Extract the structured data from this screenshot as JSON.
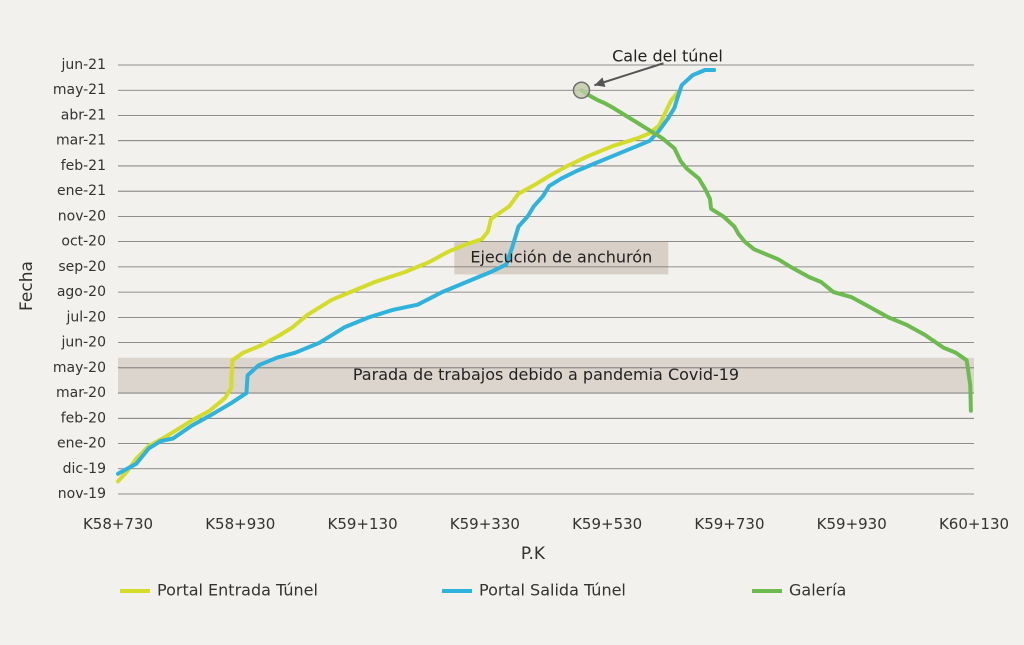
{
  "chart_data": {
    "type": "line",
    "xlabel": "P.K",
    "ylabel": "Fecha",
    "x_unit": "m (P.K. chainage)",
    "xlim": [
      58730,
      60130
    ],
    "x_ticks": [
      {
        "value": 58730,
        "label": "K58+730"
      },
      {
        "value": 58930,
        "label": "K58+930"
      },
      {
        "value": 59130,
        "label": "K59+130"
      },
      {
        "value": 59330,
        "label": "K59+330"
      },
      {
        "value": 59530,
        "label": "K59+530"
      },
      {
        "value": 59730,
        "label": "K59+730"
      },
      {
        "value": 59930,
        "label": "K59+930"
      },
      {
        "value": 60130,
        "label": "K60+130"
      }
    ],
    "y_ticks": [
      "nov-19",
      "dic-19",
      "ene-20",
      "feb-20",
      "mar-20",
      "may-20",
      "jun-20",
      "jul-20",
      "ago-20",
      "sep-20",
      "oct-20",
      "nov-20",
      "ene-21",
      "feb-21",
      "mar-21",
      "abr-21",
      "may-21",
      "jun-21"
    ],
    "grid": true,
    "legend_position": "bottom",
    "series": [
      {
        "name": "Portal Entrada Túnel",
        "color": "#d4dc2a",
        "points": [
          [
            58730,
            0.5
          ],
          [
            58745,
            0.9
          ],
          [
            58760,
            1.4
          ],
          [
            58780,
            1.9
          ],
          [
            58810,
            2.3
          ],
          [
            58850,
            2.9
          ],
          [
            58880,
            3.3
          ],
          [
            58905,
            3.8
          ],
          [
            58915,
            4.2
          ],
          [
            58917,
            5.3
          ],
          [
            58935,
            5.6
          ],
          [
            58965,
            5.9
          ],
          [
            58995,
            6.3
          ],
          [
            59015,
            6.6
          ],
          [
            59040,
            7.1
          ],
          [
            59080,
            7.7
          ],
          [
            59110,
            8.0
          ],
          [
            59150,
            8.4
          ],
          [
            59200,
            8.8
          ],
          [
            59240,
            9.2
          ],
          [
            59270,
            9.6
          ],
          [
            59300,
            9.9
          ],
          [
            59325,
            10.1
          ],
          [
            59335,
            10.4
          ],
          [
            59340,
            10.9
          ],
          [
            59370,
            11.4
          ],
          [
            59385,
            11.9
          ],
          [
            59415,
            12.3
          ],
          [
            59435,
            12.6
          ],
          [
            59465,
            13.0
          ],
          [
            59500,
            13.4
          ],
          [
            59540,
            13.8
          ],
          [
            59580,
            14.1
          ],
          [
            59600,
            14.3
          ],
          [
            59615,
            14.6
          ],
          [
            59625,
            15.1
          ],
          [
            59635,
            15.6
          ],
          [
            59645,
            15.9
          ]
        ]
      },
      {
        "name": "Portal Salida Túnel",
        "color": "#2fb2dc",
        "points": [
          [
            58730,
            0.8
          ],
          [
            58760,
            1.2
          ],
          [
            58780,
            1.8
          ],
          [
            58800,
            2.1
          ],
          [
            58820,
            2.2
          ],
          [
            58850,
            2.7
          ],
          [
            58880,
            3.1
          ],
          [
            58915,
            3.6
          ],
          [
            58940,
            4.0
          ],
          [
            58942,
            4.7
          ],
          [
            58960,
            5.1
          ],
          [
            58990,
            5.4
          ],
          [
            59020,
            5.6
          ],
          [
            59060,
            6.0
          ],
          [
            59100,
            6.6
          ],
          [
            59140,
            7.0
          ],
          [
            59180,
            7.3
          ],
          [
            59220,
            7.5
          ],
          [
            59260,
            8.0
          ],
          [
            59300,
            8.4
          ],
          [
            59340,
            8.8
          ],
          [
            59365,
            9.1
          ],
          [
            59375,
            9.8
          ],
          [
            59385,
            10.6
          ],
          [
            59400,
            11.0
          ],
          [
            59410,
            11.4
          ],
          [
            59425,
            11.8
          ],
          [
            59435,
            12.2
          ],
          [
            59455,
            12.5
          ],
          [
            59480,
            12.8
          ],
          [
            59510,
            13.1
          ],
          [
            59540,
            13.4
          ],
          [
            59580,
            13.8
          ],
          [
            59600,
            14.0
          ],
          [
            59615,
            14.4
          ],
          [
            59630,
            14.9
          ],
          [
            59640,
            15.3
          ],
          [
            59645,
            15.7
          ],
          [
            59652,
            16.2
          ],
          [
            59670,
            16.6
          ],
          [
            59690,
            16.8
          ],
          [
            59705,
            16.8
          ]
        ]
      },
      {
        "name": "Galería",
        "color": "#6dba4f",
        "points": [
          [
            60125,
            3.3
          ],
          [
            60124,
            4.3
          ],
          [
            60118,
            5.3
          ],
          [
            60100,
            5.6
          ],
          [
            60080,
            5.8
          ],
          [
            60050,
            6.3
          ],
          [
            60020,
            6.7
          ],
          [
            59990,
            7.0
          ],
          [
            59960,
            7.4
          ],
          [
            59930,
            7.8
          ],
          [
            59900,
            8.0
          ],
          [
            59880,
            8.4
          ],
          [
            59860,
            8.6
          ],
          [
            59830,
            9.0
          ],
          [
            59810,
            9.3
          ],
          [
            59790,
            9.5
          ],
          [
            59770,
            9.7
          ],
          [
            59755,
            10.0
          ],
          [
            59745,
            10.3
          ],
          [
            59738,
            10.6
          ],
          [
            59720,
            11.0
          ],
          [
            59700,
            11.3
          ],
          [
            59698,
            11.7
          ],
          [
            59690,
            12.1
          ],
          [
            59680,
            12.5
          ],
          [
            59660,
            12.9
          ],
          [
            59650,
            13.2
          ],
          [
            59640,
            13.7
          ],
          [
            59620,
            14.1
          ],
          [
            59600,
            14.4
          ],
          [
            59580,
            14.7
          ],
          [
            59560,
            15.0
          ],
          [
            59540,
            15.3
          ],
          [
            59525,
            15.5
          ],
          [
            59515,
            15.6
          ],
          [
            59500,
            15.8
          ],
          [
            59488,
            16.0
          ]
        ]
      }
    ],
    "bands": [
      {
        "label": "Parada de trabajos debido a pandemia Covid-19",
        "y_from": 4.0,
        "y_to": 5.4
      },
      {
        "label": "Ejecución de anchurón",
        "x_from": 59280,
        "x_to": 59630,
        "y_from": 8.7,
        "y_to": 10.0
      }
    ],
    "annotations": [
      {
        "label": "Cale del túnel",
        "x": 59488,
        "y": 16.0
      }
    ]
  }
}
